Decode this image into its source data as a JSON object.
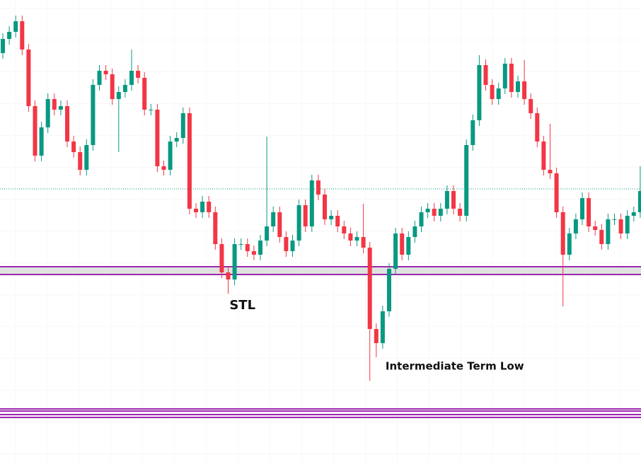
{
  "chart_data": {
    "type": "candlestick",
    "ylim": [
      0,
      653
    ],
    "up_color": "#089981",
    "down_color": "#f23645",
    "open": [
      578,
      598,
      608,
      623,
      583,
      503,
      433,
      473,
      513,
      498,
      503,
      453,
      438,
      413,
      448,
      533,
      553,
      548,
      513,
      523,
      533,
      553,
      543,
      498,
      498,
      418,
      413,
      453,
      458,
      493,
      358,
      353,
      368,
      353,
      308,
      268,
      258,
      308,
      308,
      298,
      293,
      313,
      333,
      353,
      318,
      298,
      313,
      363,
      333,
      398,
      378,
      343,
      348,
      333,
      323,
      313,
      318,
      303,
      188,
      168,
      213,
      273,
      323,
      293,
      318,
      333,
      353,
      358,
      348,
      358,
      383,
      358,
      348,
      448,
      483,
      561,
      533,
      513,
      528,
      563,
      523,
      538,
      513,
      493,
      453,
      413,
      408,
      353,
      293,
      323,
      343,
      373,
      333,
      328,
      308,
      343,
      343,
      323,
      348,
      353
    ],
    "high": [
      606,
      616,
      631,
      631,
      591,
      511,
      481,
      521,
      521,
      511,
      511,
      461,
      446,
      456,
      541,
      561,
      561,
      556,
      531,
      541,
      583,
      561,
      551,
      506,
      506,
      426,
      461,
      466,
      501,
      501,
      366,
      376,
      376,
      361,
      316,
      276,
      316,
      316,
      316,
      306,
      321,
      460,
      361,
      361,
      326,
      321,
      371,
      371,
      406,
      406,
      386,
      356,
      356,
      341,
      331,
      326,
      365,
      311,
      196,
      221,
      281,
      331,
      331,
      326,
      341,
      361,
      366,
      366,
      366,
      391,
      391,
      366,
      456,
      491,
      575,
      569,
      541,
      536,
      571,
      571,
      546,
      568,
      521,
      501,
      461,
      478,
      416,
      361,
      331,
      351,
      381,
      381,
      341,
      336,
      351,
      351,
      351,
      356,
      361,
      418
    ],
    "low": [
      570,
      590,
      600,
      575,
      495,
      425,
      425,
      465,
      490,
      490,
      445,
      430,
      405,
      405,
      440,
      525,
      540,
      505,
      438,
      515,
      525,
      535,
      490,
      490,
      410,
      405,
      405,
      445,
      450,
      350,
      345,
      345,
      345,
      300,
      260,
      238,
      250,
      300,
      290,
      285,
      285,
      305,
      325,
      310,
      290,
      290,
      305,
      325,
      325,
      370,
      335,
      335,
      325,
      315,
      305,
      305,
      295,
      115,
      148,
      160,
      205,
      265,
      285,
      285,
      310,
      325,
      345,
      340,
      340,
      350,
      350,
      340,
      340,
      440,
      475,
      525,
      505,
      505,
      520,
      515,
      515,
      505,
      485,
      445,
      405,
      400,
      345,
      220,
      285,
      315,
      335,
      325,
      320,
      300,
      300,
      335,
      315,
      315,
      340,
      345
    ],
    "close": [
      598,
      608,
      623,
      583,
      503,
      433,
      473,
      513,
      498,
      503,
      453,
      438,
      413,
      448,
      533,
      553,
      548,
      513,
      523,
      533,
      553,
      543,
      498,
      498,
      418,
      413,
      453,
      458,
      493,
      358,
      353,
      368,
      353,
      308,
      268,
      258,
      308,
      308,
      298,
      293,
      313,
      333,
      353,
      318,
      298,
      313,
      363,
      333,
      398,
      378,
      343,
      348,
      333,
      323,
      313,
      318,
      303,
      188,
      168,
      213,
      273,
      323,
      293,
      318,
      333,
      353,
      358,
      348,
      358,
      383,
      358,
      348,
      448,
      483,
      561,
      533,
      513,
      528,
      563,
      523,
      538,
      513,
      493,
      453,
      413,
      408,
      353,
      293,
      323,
      343,
      373,
      333,
      328,
      308,
      343,
      343,
      323,
      348,
      353,
      383
    ],
    "zone": {
      "low": 265,
      "high": 276,
      "color": "#9c27b0",
      "fill": "#dfe3df"
    },
    "levels": {
      "values": [
        75,
        72,
        67,
        63
      ],
      "color": "#9c27b0"
    },
    "price_line": {
      "value": 386,
      "color": "#089981"
    },
    "annotations": [
      {
        "text": "STL",
        "index": 37,
        "value": 221
      },
      {
        "text": "Intermediate Term Low",
        "index": 59,
        "value": 135
      }
    ]
  }
}
